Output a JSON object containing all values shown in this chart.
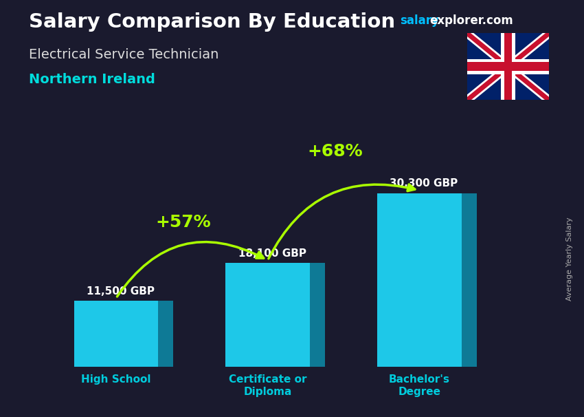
{
  "title": "Salary Comparison By Education",
  "subtitle_job": "Electrical Service Technician",
  "subtitle_location": "Northern Ireland",
  "ylabel": "Average Yearly Salary",
  "categories": [
    "High School",
    "Certificate or\nDiploma",
    "Bachelor's\nDegree"
  ],
  "values": [
    11500,
    18100,
    30300
  ],
  "value_labels": [
    "11,500 GBP",
    "18,100 GBP",
    "30,300 GBP"
  ],
  "pct_labels": [
    "+57%",
    "+68%"
  ],
  "bar_color_face": "#1EC8E8",
  "bar_color_side": "#0E7A96",
  "bar_color_top": "#5AD8F0",
  "background_color": "#1a1a2e",
  "title_color": "#FFFFFF",
  "subtitle_job_color": "#DDDDDD",
  "subtitle_location_color": "#00DDDD",
  "value_label_color": "#FFFFFF",
  "pct_label_color": "#AAFF00",
  "tick_label_color": "#00CCDD",
  "watermark_salary_color": "#00BFFF",
  "watermark_explorer_color": "#FFFFFF",
  "arrow_color": "#AAFF00",
  "ylim": [
    0,
    40000
  ],
  "bar_width": 1.0,
  "offsets": [
    0.3,
    2.1,
    3.9
  ],
  "xlim": [
    -0.3,
    5.8
  ]
}
